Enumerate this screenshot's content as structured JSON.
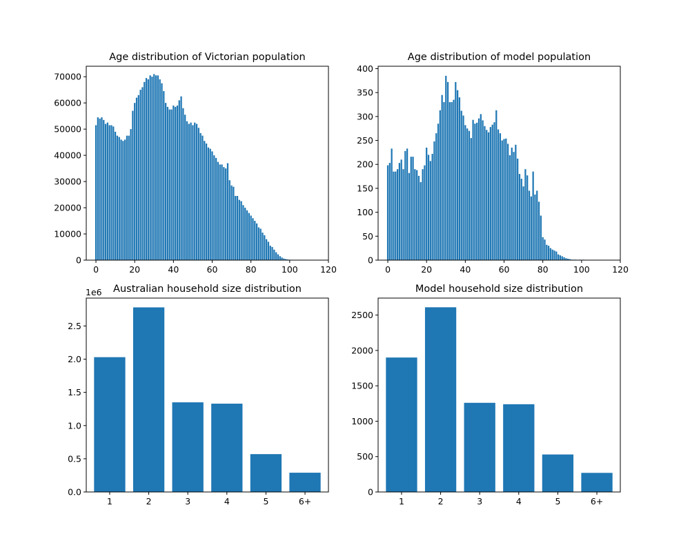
{
  "colors": {
    "bar": "#1f77b4",
    "axis": "#000000",
    "background": "#ffffff"
  },
  "chart_data": [
    {
      "type": "bar",
      "title": "Age distribution of Victorian population",
      "xlabel": "",
      "ylabel": "",
      "xlim": [
        -5,
        120
      ],
      "ylim": [
        0,
        74000
      ],
      "xticks": [
        0,
        20,
        40,
        60,
        80,
        100,
        120
      ],
      "yticks": [
        0,
        10000,
        20000,
        30000,
        40000,
        50000,
        60000,
        70000
      ],
      "x_start": 0,
      "values": [
        51500,
        54500,
        54000,
        54500,
        53500,
        52000,
        52500,
        51500,
        51500,
        51000,
        49000,
        47500,
        47000,
        46000,
        45500,
        46000,
        47500,
        47500,
        50000,
        57000,
        60000,
        62000,
        63000,
        65000,
        66000,
        68000,
        69500,
        69000,
        70500,
        70000,
        71000,
        70500,
        70500,
        69000,
        67500,
        64500,
        60000,
        58500,
        57500,
        57500,
        59000,
        58500,
        59000,
        61000,
        62500,
        58000,
        55500,
        53000,
        52000,
        52500,
        51500,
        52500,
        52000,
        50500,
        48500,
        47500,
        45500,
        44500,
        43000,
        42500,
        41500,
        40000,
        39000,
        37500,
        36500,
        36500,
        35500,
        35000,
        37000,
        30500,
        28500,
        28000,
        24500,
        24500,
        23000,
        22500,
        21000,
        20000,
        19000,
        18000,
        17000,
        16000,
        15000,
        14000,
        12500,
        12000,
        10500,
        9500,
        8000,
        7000,
        5500,
        5000,
        4000,
        3000,
        2200,
        1500,
        1000,
        600,
        400,
        250,
        150,
        80,
        50,
        30,
        20,
        10,
        5,
        3,
        2,
        1
      ],
      "grid": false
    },
    {
      "type": "bar",
      "title": "Age distribution of model population",
      "xlabel": "",
      "ylabel": "",
      "xlim": [
        -5,
        120
      ],
      "ylim": [
        0,
        405
      ],
      "xticks": [
        0,
        20,
        40,
        60,
        80,
        100,
        120
      ],
      "yticks": [
        0,
        50,
        100,
        150,
        200,
        250,
        300,
        350,
        400
      ],
      "x_start": 0,
      "values": [
        198,
        203,
        233,
        185,
        185,
        190,
        203,
        210,
        190,
        228,
        233,
        182,
        216,
        216,
        190,
        188,
        176,
        163,
        190,
        198,
        235,
        220,
        207,
        222,
        248,
        265,
        285,
        313,
        345,
        330,
        385,
        372,
        330,
        330,
        335,
        372,
        355,
        340,
        312,
        302,
        282,
        275,
        270,
        255,
        293,
        285,
        287,
        296,
        305,
        292,
        280,
        272,
        267,
        278,
        283,
        288,
        313,
        273,
        265,
        250,
        253,
        254,
        243,
        219,
        235,
        226,
        241,
        212,
        180,
        170,
        154,
        190,
        177,
        145,
        133,
        185,
        137,
        145,
        122,
        93,
        48,
        43,
        32,
        30,
        25,
        22,
        20,
        18,
        12,
        10,
        8,
        6,
        4,
        3,
        2,
        1,
        1,
        1,
        0,
        1,
        0,
        1,
        0,
        0,
        0,
        0,
        0,
        0,
        0,
        0
      ],
      "grid": false
    },
    {
      "type": "bar",
      "title": "Australian household size distribution",
      "xlabel": "",
      "ylabel": "",
      "offset_label": "1e6",
      "categories": [
        "1",
        "2",
        "3",
        "4",
        "5",
        "6+"
      ],
      "values": [
        2.03,
        2.78,
        1.35,
        1.33,
        0.57,
        0.29
      ],
      "ylim": [
        0,
        2.92
      ],
      "yticks": [
        "0.0",
        "0.5",
        "1.0",
        "1.5",
        "2.0",
        "2.5"
      ],
      "grid": false
    },
    {
      "type": "bar",
      "title": "Model household size distribution",
      "xlabel": "",
      "ylabel": "",
      "categories": [
        "1",
        "2",
        "3",
        "4",
        "5",
        "6+"
      ],
      "values": [
        1900,
        2610,
        1260,
        1240,
        530,
        270
      ],
      "ylim": [
        0,
        2740
      ],
      "yticks": [
        "0",
        "500",
        "1000",
        "1500",
        "2000",
        "2500"
      ],
      "grid": false
    }
  ]
}
